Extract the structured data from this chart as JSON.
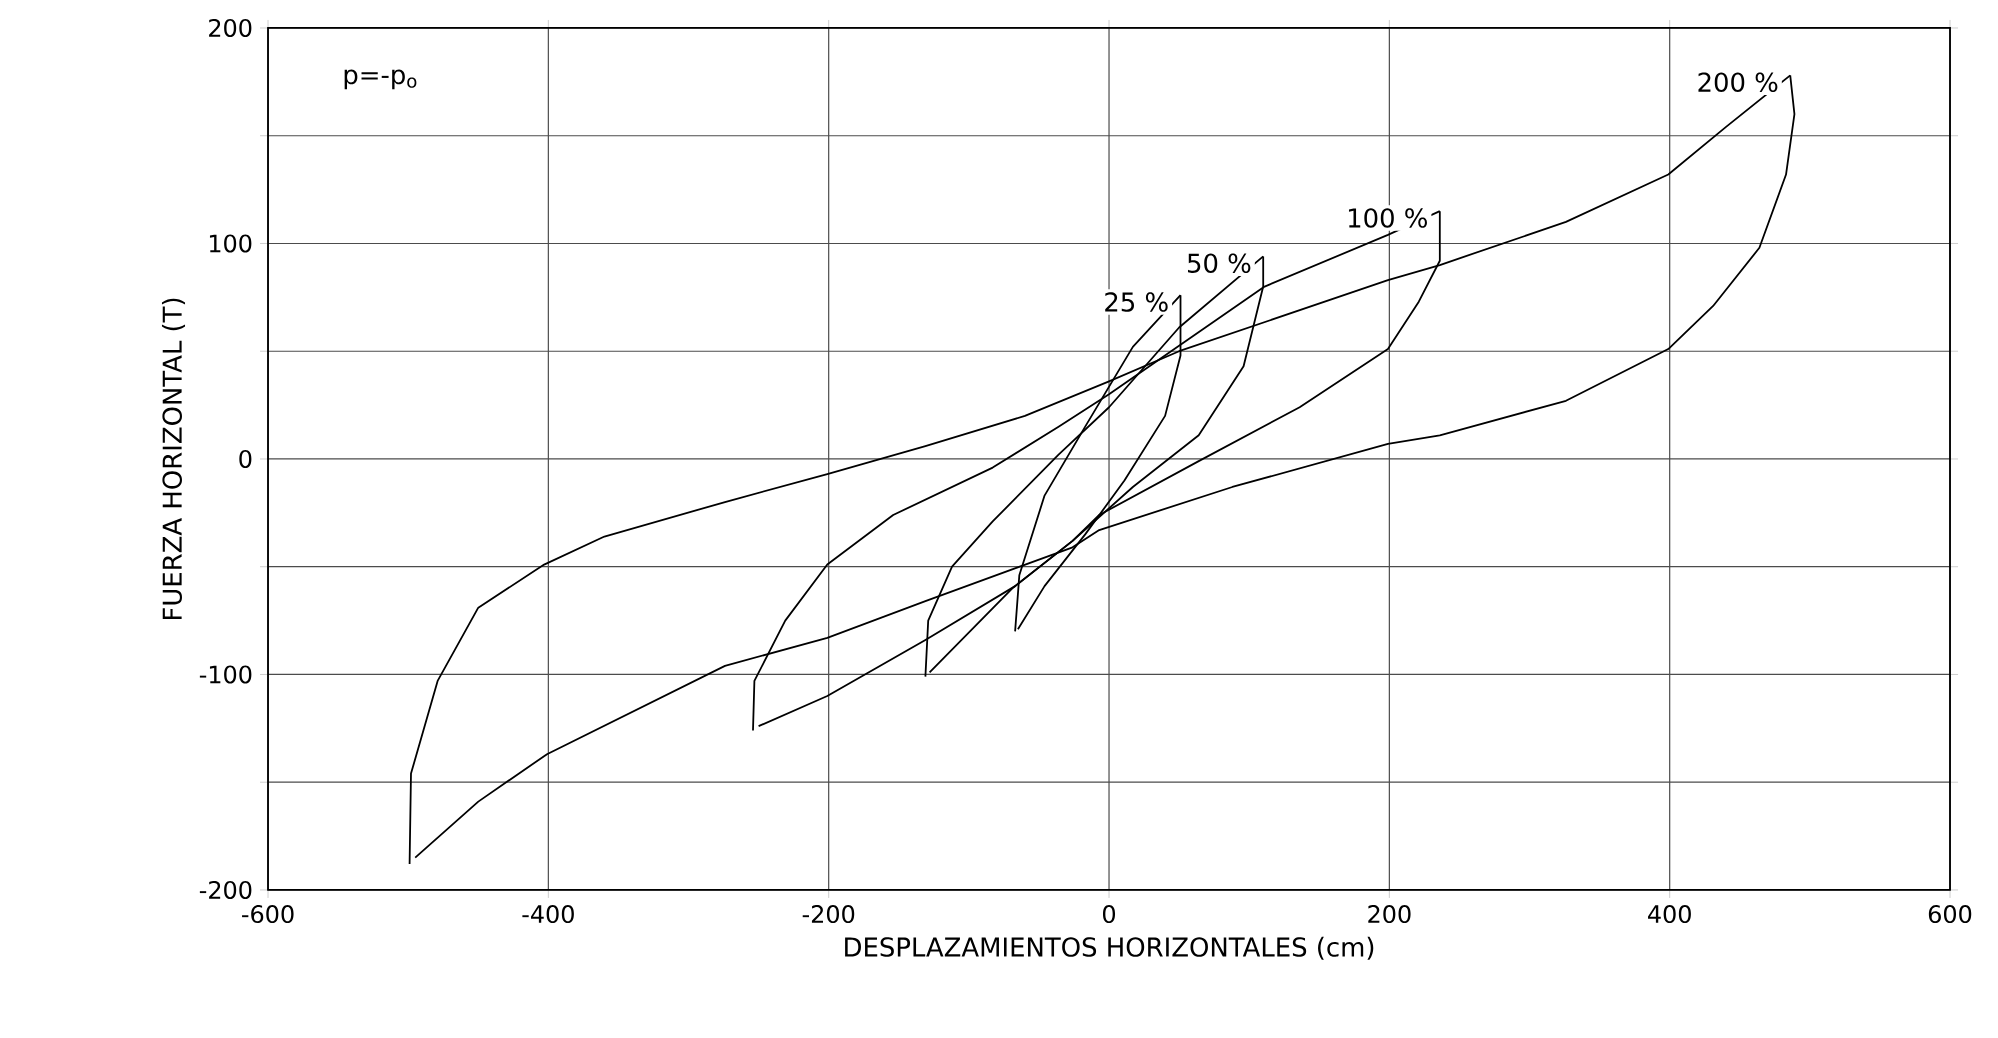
{
  "chart_data": {
    "type": "line",
    "xlabel": "DESPLAZAMIENTOS HORIZONTALES (cm)",
    "ylabel": "FUERZA HORIZONTAL (T)",
    "xlim": [
      -600,
      600
    ],
    "ylim": [
      -200,
      200
    ],
    "xticks": [
      -600,
      -400,
      -200,
      0,
      200,
      400,
      600
    ],
    "yticks": [
      -200,
      {
        "value": -150,
        "label": null
      },
      -100,
      {
        "value": -50,
        "label": null
      },
      0,
      {
        "value": 50,
        "label": null
      },
      100,
      {
        "value": 150,
        "label": null
      },
      200
    ],
    "grid": true,
    "marker": "none",
    "line_style": "solid",
    "series": [
      {
        "name": "25 %",
        "color": "#000000",
        "x": [
          -67,
          -64,
          -46,
          -17,
          17,
          51
        ],
        "values": [
          -80,
          -54,
          -17,
          15,
          52,
          76
        ]
      },
      {
        "color": "#000000",
        "x": [
          -65,
          -46,
          -17,
          11,
          40,
          51,
          51
        ],
        "values": [
          -79,
          -59,
          -35,
          -10,
          20,
          48,
          76
        ]
      },
      {
        "name": "50 %",
        "color": "#000000",
        "x": [
          -131,
          -129,
          -112,
          -83,
          -36,
          0,
          50,
          110
        ],
        "values": [
          -101,
          -75,
          -50,
          -29,
          2,
          24,
          61,
          94
        ]
      },
      {
        "color": "#000000",
        "x": [
          -128,
          -69,
          -26,
          17,
          64,
          96,
          110,
          110
        ],
        "values": [
          -99,
          -60,
          -38,
          -13,
          11,
          43,
          80,
          94
        ]
      },
      {
        "name": "100 %",
        "color": "#000000",
        "x": [
          -254,
          -253,
          -231,
          -201,
          -154,
          -83,
          -36,
          0,
          111,
          199,
          236
        ],
        "values": [
          -126,
          -103,
          -75,
          -49,
          -26,
          -4,
          15,
          30,
          80,
          104,
          115
        ]
      },
      {
        "color": "#000000",
        "x": [
          -250,
          -201,
          -131,
          -67,
          -26,
          -7,
          64,
          136,
          199,
          221,
          236,
          236
        ],
        "values": [
          -124,
          -110,
          -84,
          -59,
          -38,
          -26,
          -1,
          24,
          51,
          73,
          92,
          115
        ]
      },
      {
        "name": "200 %",
        "color": "#000000",
        "x": [
          -499,
          -498,
          -479,
          -450,
          -403,
          -360,
          -274,
          -201,
          -131,
          -60,
          0,
          50,
          199,
          236,
          326,
          399,
          440,
          486
        ],
        "values": [
          -188,
          -146,
          -103,
          -69,
          -49,
          -36,
          -20,
          -7,
          6,
          20,
          36,
          50,
          83,
          90,
          110,
          132,
          154,
          178
        ]
      },
      {
        "color": "#000000",
        "x": [
          -495,
          -450,
          -401,
          -274,
          -201,
          -131,
          -26,
          -7,
          88,
          199,
          236,
          326,
          399,
          431,
          464,
          483,
          489,
          486
        ],
        "values": [
          -185,
          -159,
          -137,
          -96,
          -83,
          -66,
          -41,
          -33,
          -13,
          7,
          11,
          27,
          51,
          71,
          98,
          132,
          160,
          178
        ]
      }
    ],
    "annotations": [
      "p=-p$_{o}$"
    ]
  }
}
